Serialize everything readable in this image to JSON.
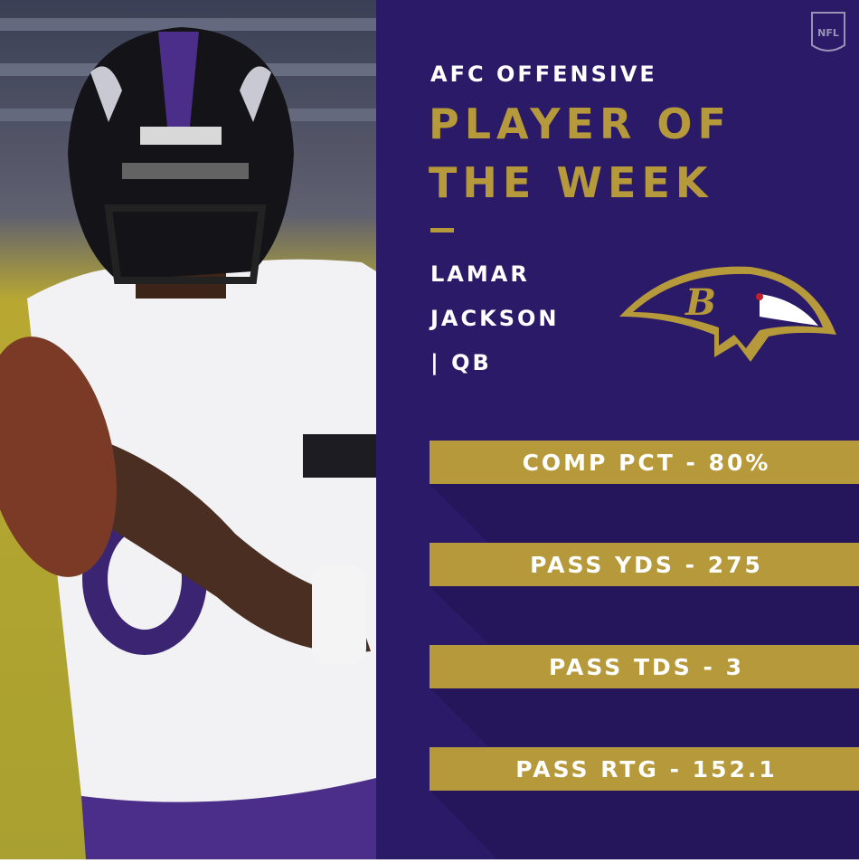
{
  "header": {
    "kicker": "AFC OFFENSIVE",
    "title_lines": [
      "PLAYER OF",
      "THE WEEK"
    ]
  },
  "player": {
    "name_lines": [
      "LAMAR",
      "JACKSON"
    ],
    "position": "| QB"
  },
  "stats": [
    "COMP PCT - 80%",
    "PASS YDS - 275",
    "PASS TDS - 3",
    "PASS RTG - 152.1"
  ],
  "badge": "NFL"
}
